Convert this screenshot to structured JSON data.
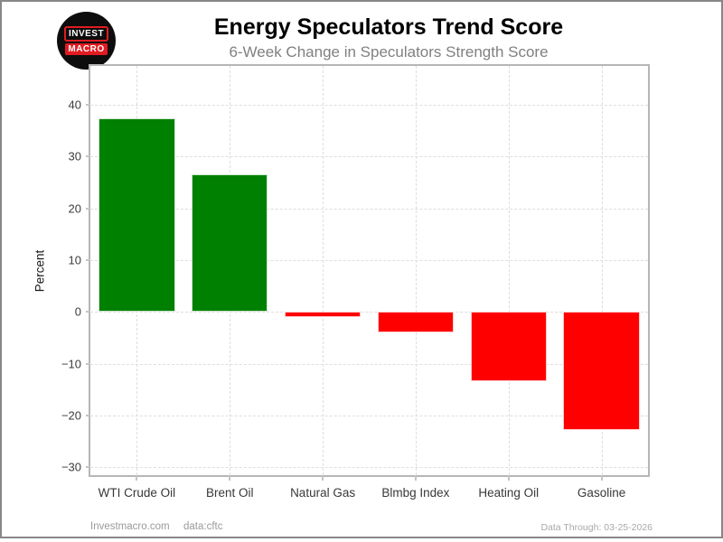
{
  "header": {
    "title": "Energy Speculators Trend Score",
    "subtitle": "6-Week Change in Speculators Strength Score",
    "logo": {
      "line1": "INVEST",
      "line2": "MACRO",
      "bg_color": "#0d0d0d",
      "accent_color": "#e11b22"
    }
  },
  "chart_data": {
    "type": "bar",
    "title": "Energy Speculators Trend Score",
    "subtitle": "6-Week Change in Speculators Strength Score",
    "categories": [
      "WTI Crude Oil",
      "Brent Oil",
      "Natural Gas",
      "Blmbg Index",
      "Heating Oil",
      "Gasoline"
    ],
    "values": [
      37.4,
      26.6,
      -0.9,
      -3.9,
      -13.4,
      -22.7
    ],
    "xlabel": "",
    "ylabel": "Percent",
    "yticks": [
      40,
      30,
      20,
      10,
      0,
      -10,
      -20,
      -30
    ],
    "ylim": [
      -31.5,
      47.5
    ],
    "grid": "dashed-horizontal-and-vertical",
    "legend": "none",
    "positive_color": "#008000",
    "negative_color": "#fe0000"
  },
  "footer": {
    "site": "Investmacro.com",
    "source": "data:cftc",
    "data_through": "Data Through: 03-25-2026"
  }
}
